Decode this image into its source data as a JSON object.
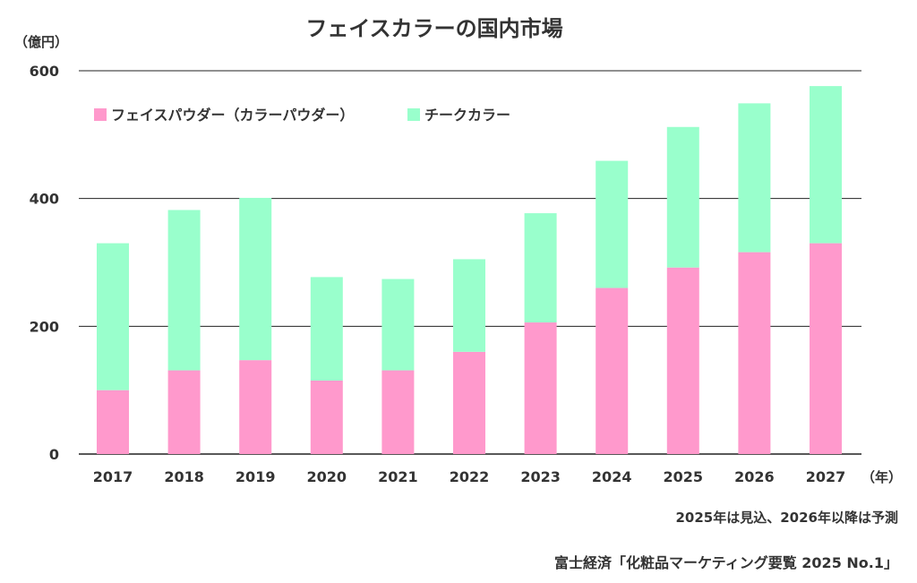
{
  "chart_data": {
    "type": "bar",
    "stacked": true,
    "title": "フェイスカラーの国内市場",
    "ylabel": "（億円）",
    "xlabel": "（年）",
    "ylim": [
      0,
      600
    ],
    "yticks": [
      "0",
      "200",
      "400",
      "600"
    ],
    "categories": [
      "2017",
      "2018",
      "2019",
      "2020",
      "2021",
      "2022",
      "2023",
      "2024",
      "2025",
      "2026",
      "2027"
    ],
    "series": [
      {
        "name": "フェイスパウダー（カラーパウダー）",
        "color": "#ff99cc",
        "values": [
          100,
          131,
          147,
          115,
          131,
          160,
          206,
          260,
          292,
          316,
          330
        ]
      },
      {
        "name": "チークカラー",
        "color": "#99ffcc",
        "values": [
          230,
          251,
          254,
          162,
          143,
          145,
          171,
          199,
          220,
          233,
          246
        ]
      }
    ],
    "grid": true,
    "legend": "top-left"
  },
  "notes": {
    "forecast": "2025年は見込、2026年以降は予測",
    "source": "富士経済「化粧品マーケティング要覧 2025 No.1」"
  }
}
